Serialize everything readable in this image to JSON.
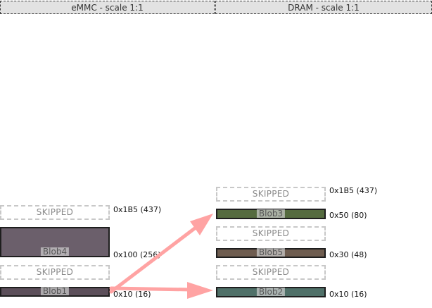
{
  "emmc": {
    "header": "eMMC - scale 1:1",
    "blocks": {
      "skipped_top": "SKIPPED",
      "blob4": "Blob4",
      "skipped_mid": "SKIPPED",
      "blob1": "Blob1"
    },
    "addresses": {
      "a1b5": "0x1B5 (437)",
      "a100": "0x100 (256)",
      "a10": "0x10 (16)"
    }
  },
  "dram": {
    "header": "DRAM - scale 1:1",
    "blocks": {
      "skipped_top": "SKIPPED",
      "blob3": "Blob3",
      "skipped_mid": "SKIPPED",
      "blob5": "Blob5",
      "skipped_low": "SKIPPED",
      "blob2": "Blob2"
    },
    "addresses": {
      "a1b5": "0x1B5 (437)",
      "a50": "0x50 (80)",
      "a30": "0x30 (48)",
      "a10": "0x10 (16)"
    }
  },
  "colors": {
    "blob1": "#5c4f5a",
    "blob4": "#6b5f6b",
    "blob3": "#556b3f",
    "blob5": "#6f5d50",
    "blob2": "#4f7068",
    "arrow": "#ffa3a3"
  }
}
